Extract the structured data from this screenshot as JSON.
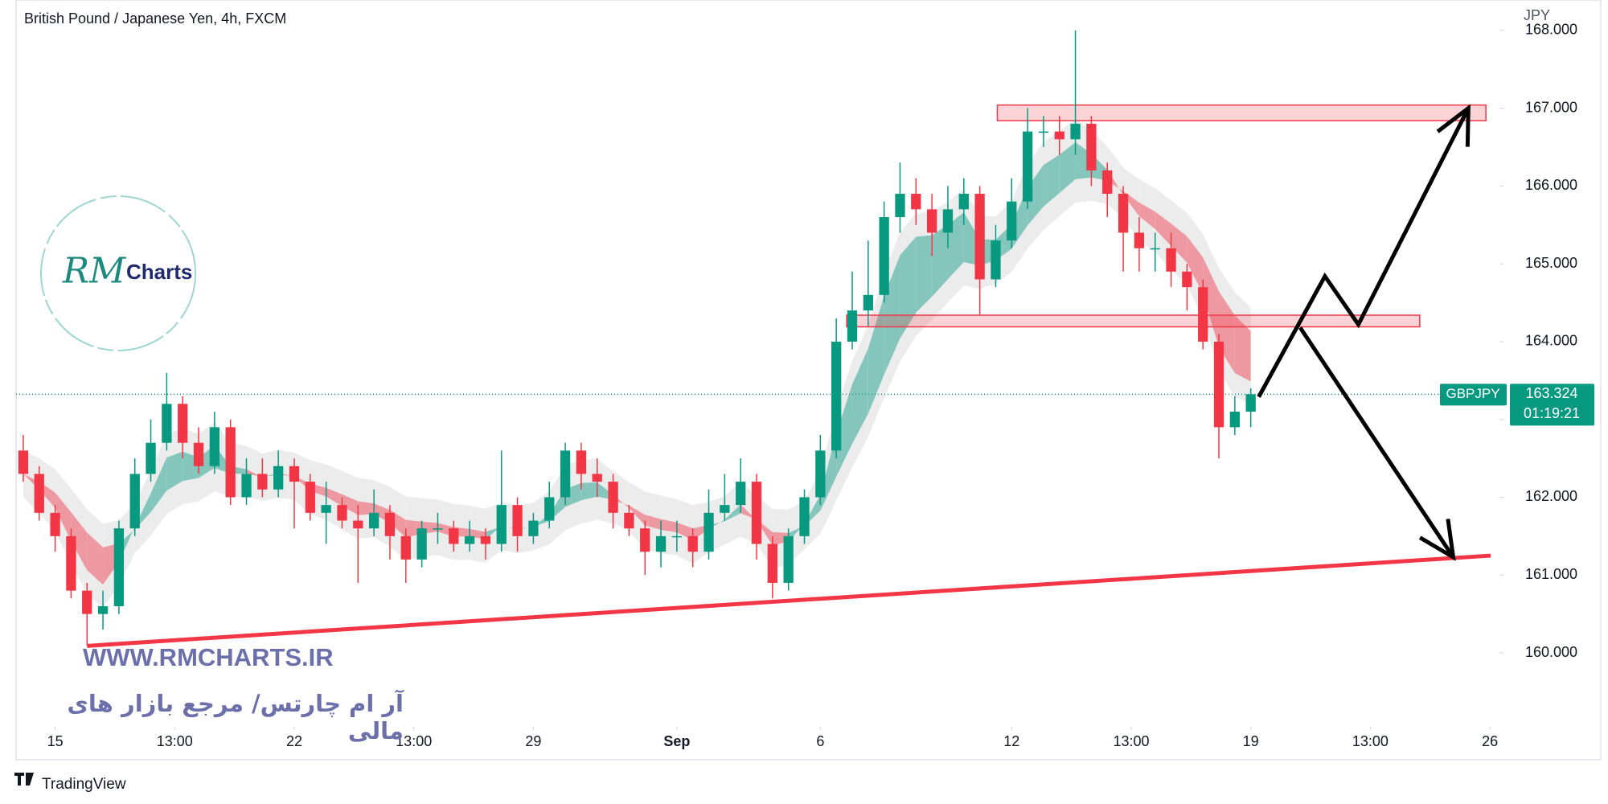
{
  "header": {
    "title": "British Pound / Japanese Yen, 4h, FXCM",
    "currency": "JPY"
  },
  "chart_data": {
    "type": "candlestick",
    "symbol": "GBPJPY",
    "x": [
      -4,
      -2,
      0,
      2,
      4,
      6,
      8,
      10,
      12,
      14,
      16,
      18,
      20,
      22,
      24,
      26,
      28,
      30,
      32,
      34,
      36,
      38,
      40,
      42,
      44,
      46,
      48,
      50,
      52,
      54,
      56,
      58,
      60,
      62,
      64,
      66,
      68,
      70,
      72,
      74,
      76,
      78,
      80,
      82,
      84,
      86,
      88,
      90,
      92,
      94,
      96,
      98,
      100,
      102,
      104,
      106,
      108,
      110,
      112,
      114,
      116,
      118,
      120,
      122,
      124,
      126,
      128,
      130,
      132,
      134,
      136,
      138,
      140,
      142,
      144,
      146,
      148,
      150
    ],
    "open": [
      162.6,
      162.3,
      161.8,
      161.5,
      160.8,
      160.5,
      160.6,
      161.6,
      162.3,
      162.7,
      163.2,
      162.7,
      162.4,
      162.9,
      162.0,
      162.3,
      162.1,
      162.4,
      162.2,
      161.8,
      161.9,
      161.7,
      161.6,
      161.8,
      161.5,
      161.2,
      161.6,
      161.6,
      161.4,
      161.5,
      161.4,
      161.9,
      161.5,
      161.7,
      162.0,
      162.6,
      162.3,
      162.2,
      161.8,
      161.6,
      161.3,
      161.5,
      161.5,
      161.3,
      161.8,
      161.9,
      162.2,
      161.4,
      160.9,
      161.5,
      162.0,
      162.6,
      164.0,
      164.4,
      164.6,
      165.6,
      165.9,
      165.7,
      165.4,
      165.7,
      165.9,
      164.8,
      165.3,
      165.8,
      166.7,
      166.7,
      166.6,
      166.8,
      166.2,
      165.9,
      165.4,
      165.2,
      165.2,
      164.9,
      164.7,
      164.0,
      162.9,
      163.1
    ],
    "high": [
      162.8,
      162.4,
      161.9,
      161.6,
      160.9,
      160.8,
      161.7,
      162.5,
      163.0,
      163.6,
      163.3,
      162.9,
      163.1,
      163.0,
      162.5,
      162.5,
      162.6,
      162.5,
      162.3,
      162.2,
      162.0,
      161.9,
      162.1,
      161.9,
      161.6,
      161.7,
      161.8,
      161.7,
      161.7,
      161.6,
      162.6,
      162.0,
      161.8,
      162.2,
      162.7,
      162.7,
      162.5,
      162.3,
      161.9,
      161.7,
      161.7,
      161.7,
      161.6,
      162.1,
      162.3,
      162.5,
      162.3,
      161.5,
      161.6,
      162.1,
      162.8,
      164.3,
      164.9,
      165.3,
      165.8,
      166.3,
      166.1,
      165.9,
      166.0,
      166.1,
      166.0,
      165.5,
      166.1,
      167.0,
      166.9,
      166.9,
      168.0,
      166.9,
      166.3,
      166.0,
      165.6,
      165.4,
      165.4,
      165.0,
      164.8,
      164.1,
      163.3,
      163.4
    ],
    "low": [
      162.2,
      161.7,
      161.3,
      160.7,
      160.1,
      160.3,
      160.5,
      161.5,
      162.2,
      162.6,
      162.5,
      162.3,
      162.3,
      161.9,
      161.9,
      162.0,
      162.0,
      161.6,
      161.7,
      161.4,
      161.6,
      160.9,
      161.5,
      161.2,
      160.9,
      161.1,
      161.4,
      161.3,
      161.3,
      161.2,
      161.3,
      161.3,
      161.4,
      161.6,
      161.9,
      162.1,
      162.0,
      161.6,
      161.5,
      161.0,
      161.1,
      161.3,
      161.1,
      161.2,
      161.7,
      161.8,
      161.2,
      160.7,
      160.8,
      161.4,
      161.9,
      162.5,
      163.9,
      164.2,
      164.5,
      165.4,
      165.5,
      165.1,
      165.2,
      165.5,
      164.35,
      164.7,
      165.2,
      165.7,
      166.5,
      166.4,
      166.4,
      166.0,
      165.6,
      164.9,
      164.9,
      164.9,
      164.7,
      164.4,
      163.9,
      162.5,
      162.8,
      162.9
    ],
    "close": [
      162.3,
      161.8,
      161.5,
      160.8,
      160.5,
      160.6,
      161.6,
      162.3,
      162.7,
      163.2,
      162.7,
      162.4,
      162.9,
      162.0,
      162.3,
      162.1,
      162.4,
      162.2,
      161.8,
      161.9,
      161.7,
      161.6,
      161.8,
      161.5,
      161.2,
      161.6,
      161.6,
      161.4,
      161.5,
      161.4,
      161.9,
      161.5,
      161.7,
      162.0,
      162.6,
      162.3,
      162.2,
      161.8,
      161.6,
      161.3,
      161.5,
      161.5,
      161.3,
      161.8,
      161.9,
      162.2,
      161.4,
      160.9,
      161.5,
      162.0,
      162.6,
      164.0,
      164.4,
      164.6,
      165.6,
      165.9,
      165.7,
      165.4,
      165.7,
      165.9,
      164.8,
      165.3,
      165.8,
      166.7,
      166.7,
      166.6,
      166.8,
      166.2,
      165.9,
      165.4,
      165.2,
      165.2,
      164.9,
      164.7,
      164.0,
      162.9,
      163.1,
      163.324
    ],
    "up_color": "#089981",
    "down_color": "#f23645",
    "xlim": [
      -4.9,
      181.2
    ],
    "ylim": [
      159.05,
      168.39
    ],
    "xticks": [
      {
        "value": 0,
        "label": "15"
      },
      {
        "value": 15,
        "label": "13:00"
      },
      {
        "value": 30,
        "label": "22"
      },
      {
        "value": 45,
        "label": "13:00"
      },
      {
        "value": 60,
        "label": "29"
      },
      {
        "value": 78,
        "label": "Sep"
      },
      {
        "value": 96,
        "label": "6"
      },
      {
        "value": 120,
        "label": "12"
      },
      {
        "value": 135,
        "label": "13:00"
      },
      {
        "value": 150,
        "label": "19"
      },
      {
        "value": 165,
        "label": "13:00"
      },
      {
        "value": 180,
        "label": "26"
      }
    ],
    "yticks": [
      {
        "value": 160,
        "label": "160.000"
      },
      {
        "value": 161,
        "label": "161.000"
      },
      {
        "value": 162,
        "label": "162.000"
      },
      {
        "value": 163,
        "label": "163.000"
      },
      {
        "value": 164,
        "label": "164.000"
      },
      {
        "value": 165,
        "label": "165.000"
      },
      {
        "value": 166,
        "label": "166.000"
      },
      {
        "value": 167,
        "label": "167.000"
      },
      {
        "value": 168,
        "label": "168.000"
      }
    ],
    "last_price": 163.324,
    "countdown": "01:19:21",
    "drawings": {
      "zones": [
        {
          "x": [
            118.2,
            179.5
          ],
          "top": 167.04,
          "bottom": 166.84
        },
        {
          "x": [
            99.3,
            171.2
          ],
          "top": 164.34,
          "bottom": 164.19
        }
      ],
      "trendline": {
        "x": [
          4.0,
          180.1
        ],
        "y": [
          160.09,
          161.25
        ]
      },
      "arrows": [
        {
          "x": [
            151.0,
            159.3,
            163.5,
            177.3
          ],
          "y": [
            163.29,
            164.84,
            164.22,
            167.0
          ]
        },
        {
          "x": [
            156.2,
            175.4
          ],
          "y": [
            164.18,
            161.23
          ]
        }
      ]
    }
  },
  "watermark": {
    "logo_initials": "RM",
    "logo": "Charts",
    "url": "WWW.RMCHARTS.IR",
    "tagline": "آر ام چارتس/ مرجع بازار های مالی"
  },
  "footer": {
    "brand": "TradingView"
  }
}
